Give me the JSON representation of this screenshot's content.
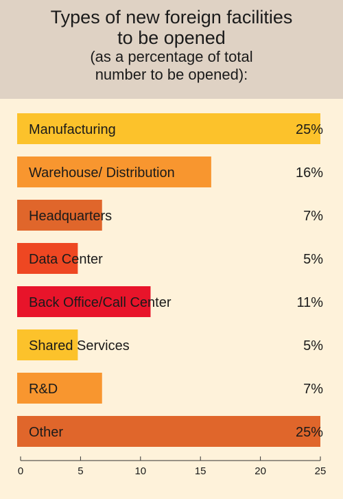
{
  "chart_data": {
    "type": "bar",
    "orientation": "horizontal",
    "title": "Types of new foreign facilities to be opened",
    "subtitle": "(as a percentage of total number to be opened):",
    "categories": [
      "Manufacturing",
      "Warehouse/ Distribution",
      "Headquarters",
      "Data Center",
      "Back Office/Call Center",
      "Shared Services",
      "R&D",
      "Other"
    ],
    "values": [
      25,
      16,
      7,
      5,
      11,
      5,
      7,
      25
    ],
    "value_labels": [
      "25%",
      "16%",
      "7%",
      "5%",
      "11%",
      "5%",
      "7%",
      "25%"
    ],
    "colors": [
      "#fcc22b",
      "#f8962f",
      "#e0662b",
      "#ee4722",
      "#e8142a",
      "#fcc22b",
      "#f8962f",
      "#e0662b"
    ],
    "xlim": [
      0,
      25
    ],
    "xticks": [
      0,
      5,
      10,
      15,
      20,
      25
    ],
    "xlabel": "",
    "ylabel": "",
    "grid": false,
    "legend": "none"
  }
}
